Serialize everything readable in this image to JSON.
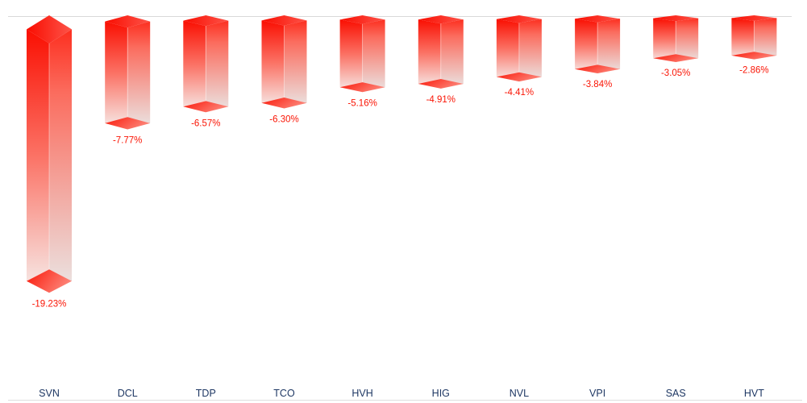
{
  "chart_data": {
    "type": "bar",
    "style": "3d-columns-hanging-negative",
    "title": "",
    "xlabel": "",
    "ylabel": "",
    "categories": [
      "SVN",
      "DCL",
      "TDP",
      "TCO",
      "HVH",
      "HIG",
      "NVL",
      "VPI",
      "SAS",
      "HVT"
    ],
    "values": [
      -19.23,
      -7.77,
      -6.57,
      -6.3,
      -5.16,
      -4.91,
      -4.41,
      -3.84,
      -3.05,
      -2.86
    ],
    "value_labels": [
      "-19.23%",
      "-7.77%",
      "-6.57%",
      "-6.30%",
      "-5.16%",
      "-4.91%",
      "-4.41%",
      "-3.84%",
      "-3.05%",
      "-2.86%"
    ],
    "unit": "%",
    "ylim": [
      -20,
      0
    ],
    "baseline_value": 0,
    "grid": "baseline-only",
    "legend": "none",
    "value_axis_visible": false,
    "colors": {
      "left_face_top": "#fa0f02",
      "left_face_mid": "#fb7265",
      "left_face_bottom": "#f6edeb",
      "right_face_top": "#fc2f20",
      "right_face_mid": "#fb6c5e",
      "right_face_bottom": "#eae6e5",
      "cap_red_dark": "#f90c00",
      "cap_red_light": "#fd5449",
      "diamond_red_dark": "#fa1708",
      "diamond_red_light": "#fd8276",
      "value_label": "#fa1505",
      "category_label": "#1f3864",
      "gridline": "#d9d9d9",
      "background": "#ffffff"
    }
  }
}
